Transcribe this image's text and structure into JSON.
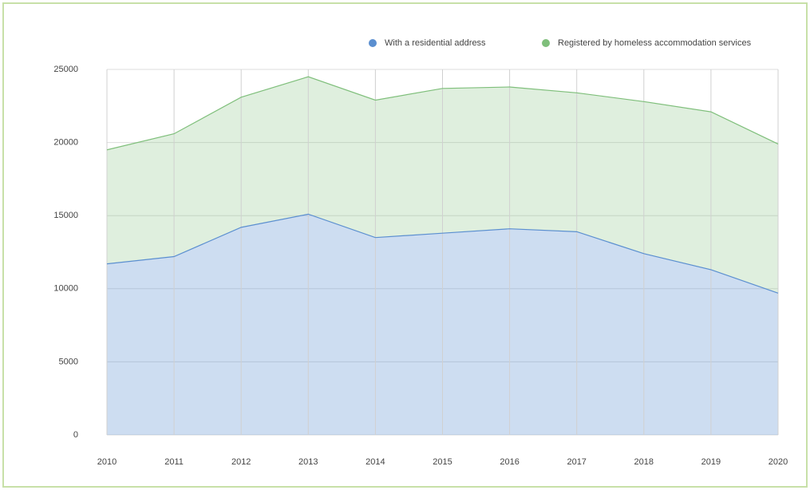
{
  "chart_data": {
    "type": "area",
    "categories": [
      "2010",
      "2011",
      "2012",
      "2013",
      "2014",
      "2015",
      "2016",
      "2017",
      "2018",
      "2019",
      "2020"
    ],
    "series": [
      {
        "name": "With a residential address",
        "color": "#5b8fd0",
        "values": [
          11700,
          12200,
          14200,
          15100,
          13500,
          13800,
          14100,
          13900,
          12400,
          11300,
          9700
        ]
      },
      {
        "name": "Registered by homeless accommodation services",
        "color": "#7fbf7b",
        "values": [
          19500,
          20600,
          23100,
          24500,
          22900,
          23700,
          23800,
          23400,
          22800,
          22100,
          19900
        ]
      }
    ],
    "ylim": [
      0,
      25000
    ],
    "yticks": [
      0,
      5000,
      10000,
      15000,
      20000,
      25000
    ],
    "grid": true,
    "legend": "top"
  }
}
